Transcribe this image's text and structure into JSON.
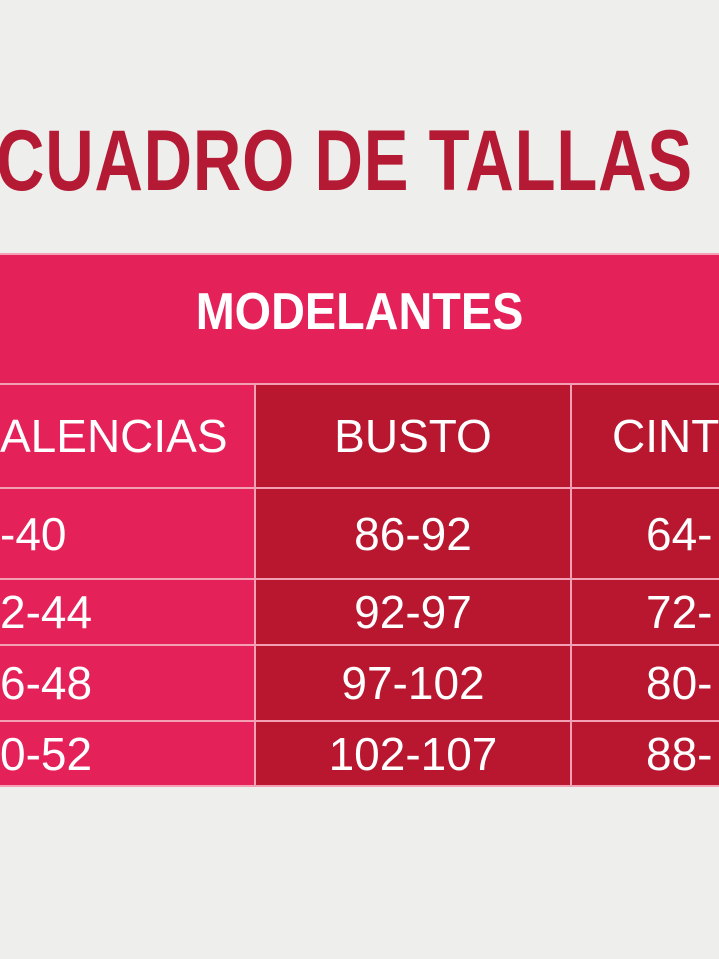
{
  "title": "CUADRO DE TALLAS",
  "table": {
    "caption": "MODELANTES",
    "headers": [
      "ALENCIAS",
      "BUSTO",
      "CINT"
    ],
    "rows": [
      [
        "-40",
        "86-92",
        "64-"
      ],
      [
        "2-44",
        "92-97",
        "72-"
      ],
      [
        "6-48",
        "97-102",
        "80-"
      ],
      [
        "0-52",
        "102-107",
        "88-"
      ]
    ]
  },
  "colors": {
    "background": "#eeeeec",
    "title": "#b51a34",
    "pink": "#e42259",
    "dark_red": "#b8172f",
    "grid": "#f3a0b4"
  }
}
